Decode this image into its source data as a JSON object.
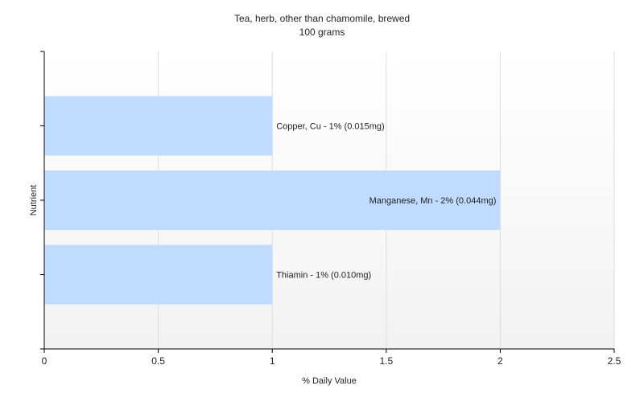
{
  "chart_data": {
    "type": "bar",
    "orientation": "horizontal",
    "title": "Tea, herb, other than chamomile, brewed",
    "subtitle": "100 grams",
    "xlabel": "% Daily Value",
    "ylabel": "Nutrient",
    "xlim": [
      0,
      2.5
    ],
    "xticks": [
      "0",
      "0.5",
      "1",
      "1.5",
      "2",
      "2.5"
    ],
    "grid": true,
    "categories": [
      "Copper, Cu",
      "Manganese, Mn",
      "Thiamin"
    ],
    "values": [
      1,
      2,
      1
    ],
    "data_labels": [
      "Copper, Cu - 1% (0.015mg)",
      "Manganese, Mn - 2% (0.044mg)",
      "Thiamin - 1% (0.010mg)"
    ],
    "bar_color": "#bfdbff"
  }
}
